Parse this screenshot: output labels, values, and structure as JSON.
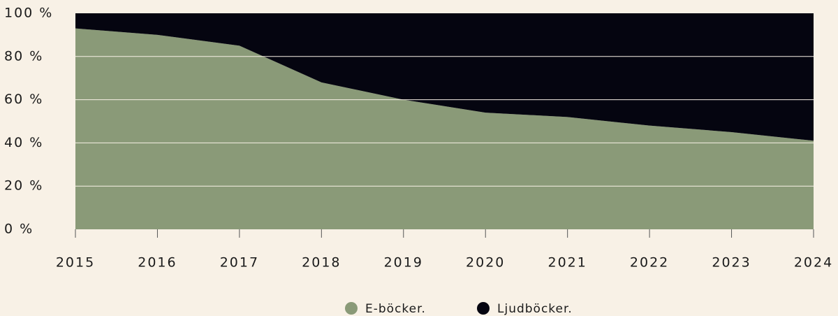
{
  "chart_data": {
    "type": "stacked_area",
    "categories": [
      "2015",
      "2016",
      "2017",
      "2018",
      "2019",
      "2020",
      "2021",
      "2022",
      "2023",
      "2024"
    ],
    "series": [
      {
        "name": "E-böcker.",
        "color": "#8a9a78",
        "values": [
          93,
          90,
          85,
          68,
          60,
          54,
          52,
          48,
          45,
          41
        ]
      },
      {
        "name": "Ljudböcker.",
        "color": "#050510",
        "values": [
          7,
          10,
          15,
          32,
          40,
          46,
          48,
          52,
          55,
          59
        ]
      }
    ],
    "ylim": [
      0,
      100
    ],
    "yticks": [
      {
        "value": 0,
        "label": "0 %"
      },
      {
        "value": 20,
        "label": "20 %"
      },
      {
        "value": 40,
        "label": "40 %"
      },
      {
        "value": 60,
        "label": "60 %"
      },
      {
        "value": 80,
        "label": "80 %"
      },
      {
        "value": 100,
        "label": "100 %"
      }
    ],
    "grid": true,
    "legend": "bottom"
  }
}
